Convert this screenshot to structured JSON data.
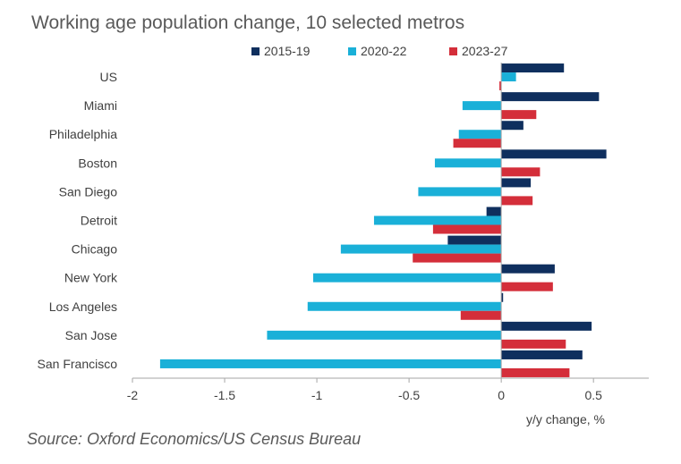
{
  "chart_data": {
    "type": "bar",
    "orientation": "horizontal",
    "title": "Working age population change, 10 selected metros",
    "xlabel": "y/y change, %",
    "ylabel": "",
    "xlim": [
      -2,
      0.8
    ],
    "xticks": [
      -2,
      -1.5,
      -1,
      -0.5,
      0,
      0.5
    ],
    "xtick_labels": [
      "-2",
      "-1.5",
      "-1",
      "-0.5",
      "0",
      "0.5"
    ],
    "grid": false,
    "legend_position": "top",
    "categories": [
      "US",
      "Miami",
      "Philadelphia",
      "Boston",
      "San Diego",
      "Detroit",
      "Chicago",
      "New York",
      "Los Angeles",
      "San Jose",
      "San Francisco"
    ],
    "series": [
      {
        "name": "2015-19",
        "color": "#0f2f5e",
        "values": [
          0.34,
          0.53,
          0.12,
          0.57,
          0.16,
          -0.08,
          -0.29,
          0.29,
          0.01,
          0.49,
          0.44
        ]
      },
      {
        "name": "2020-22",
        "color": "#1ab0d8",
        "values": [
          0.08,
          -0.21,
          -0.23,
          -0.36,
          -0.45,
          -0.69,
          -0.87,
          -1.02,
          -1.05,
          -1.27,
          -1.85
        ]
      },
      {
        "name": "2023-27",
        "color": "#d42e3a",
        "values": [
          -0.01,
          0.19,
          -0.26,
          0.21,
          0.17,
          -0.37,
          -0.48,
          0.28,
          -0.22,
          0.35,
          0.37
        ]
      }
    ]
  },
  "source": "Source: Oxford Economics/US Census Bureau"
}
